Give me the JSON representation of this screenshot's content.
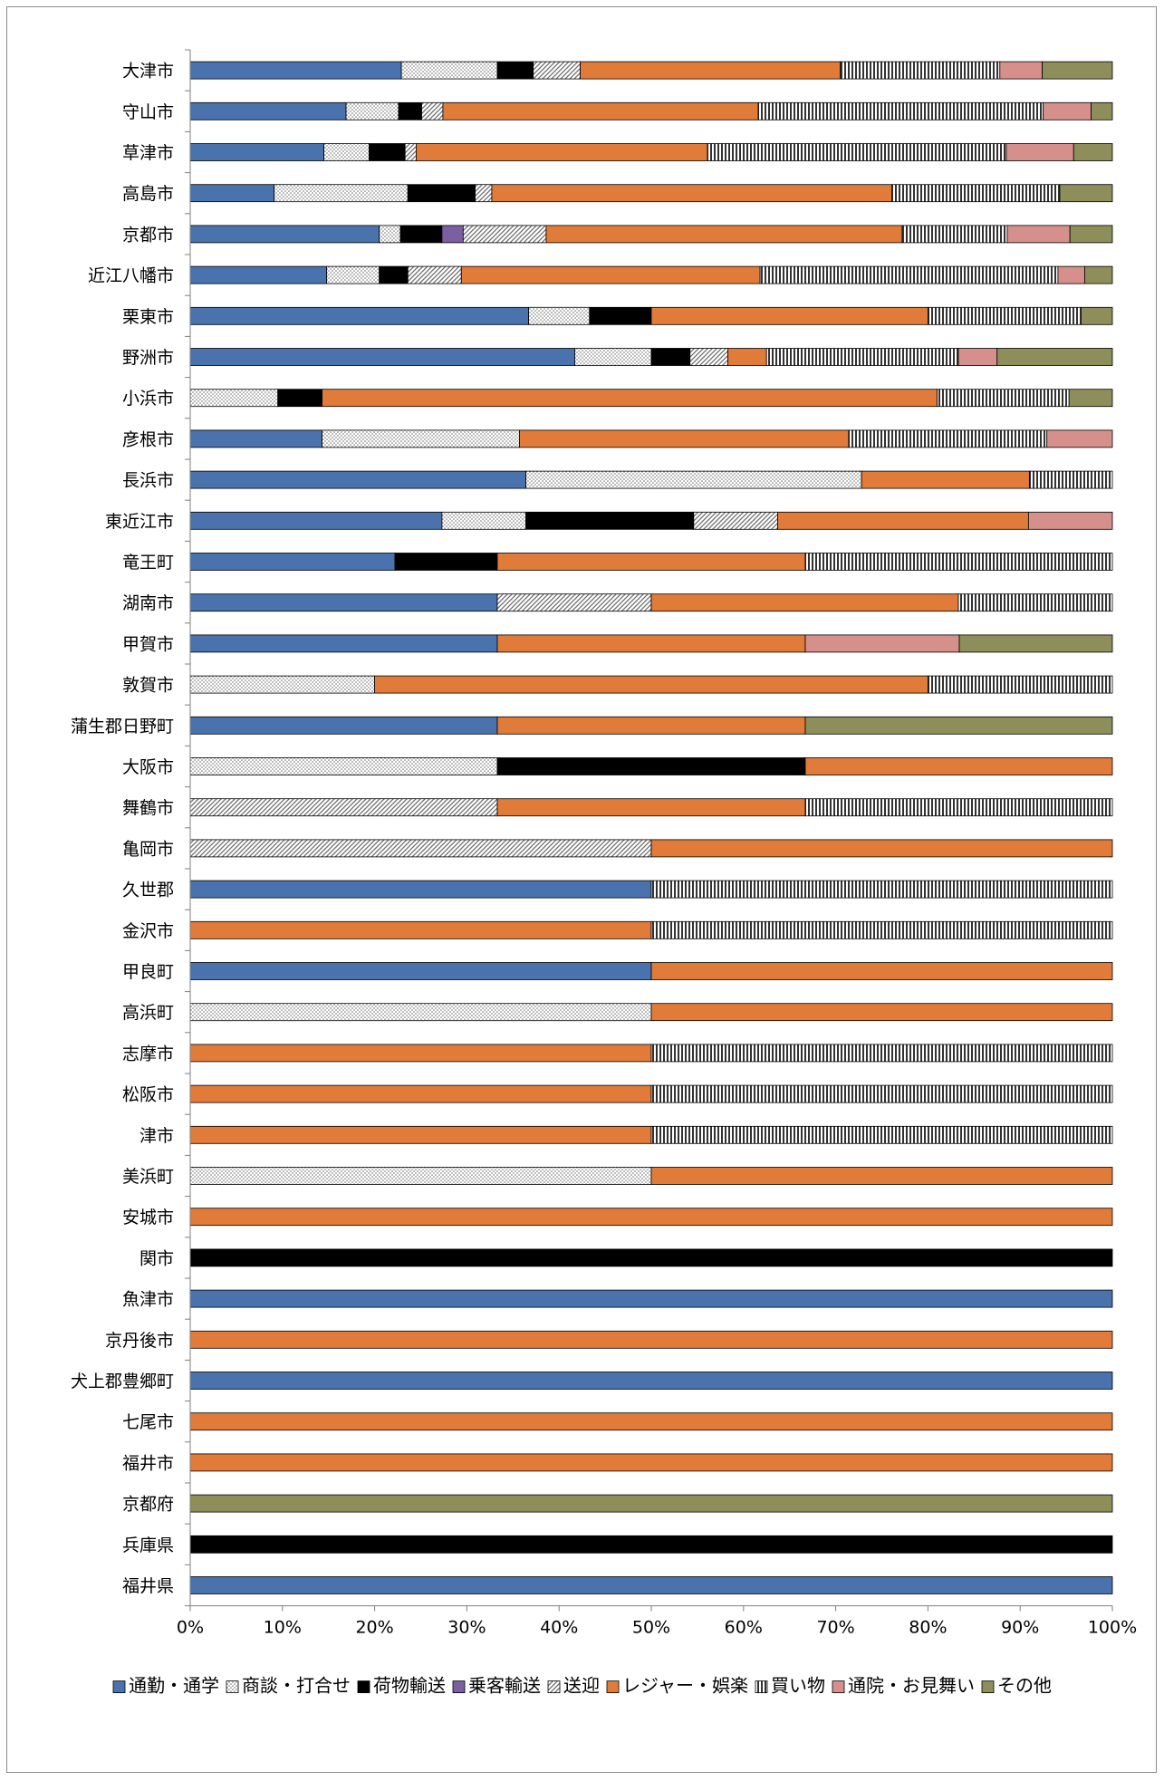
{
  "chart_data": {
    "type": "bar",
    "orientation": "horizontal",
    "stacked": "percent",
    "legend_position": "bottom",
    "grid": false,
    "xlim": [
      0,
      100
    ],
    "x_ticks": [
      "0%",
      "10%",
      "20%",
      "30%",
      "40%",
      "50%",
      "60%",
      "70%",
      "80%",
      "90%",
      "100%"
    ],
    "categories": [
      "大津市",
      "守山市",
      "草津市",
      "高島市",
      "京都市",
      "近江八幡市",
      "栗東市",
      "野洲市",
      "小浜市",
      "彦根市",
      "長浜市",
      "東近江市",
      "竜王町",
      "湖南市",
      "甲賀市",
      "敦賀市",
      "蒲生郡日野町",
      "大阪市",
      "舞鶴市",
      "亀岡市",
      "久世郡",
      "金沢市",
      "甲良町",
      "高浜町",
      "志摩市",
      "松阪市",
      "津市",
      "美浜町",
      "安城市",
      "関市",
      "魚津市",
      "京丹後市",
      "犬上郡豊郷町",
      "七尾市",
      "福井市",
      "京都府",
      "兵庫県",
      "福井県"
    ],
    "series": [
      {
        "name": "通勤・通学",
        "color": "#4a72ad",
        "pattern": "solid",
        "values": [
          22.9,
          16.9,
          14.5,
          9.1,
          20.5,
          14.8,
          36.7,
          41.7,
          0,
          14.3,
          36.4,
          27.3,
          22.2,
          33.3,
          33.3,
          0,
          33.3,
          0,
          0,
          0,
          50,
          0,
          50,
          0,
          0,
          0,
          0,
          0,
          0,
          0,
          100,
          0,
          100,
          0,
          0,
          0,
          0,
          100
        ]
      },
      {
        "name": "商談・打合せ",
        "color": "#d9d9d9",
        "pattern": "dots",
        "values": [
          10.4,
          5.7,
          4.9,
          14.5,
          2.3,
          5.7,
          6.6,
          8.3,
          9.5,
          21.4,
          36.4,
          9.1,
          0,
          0,
          0,
          20,
          0,
          33.3,
          0,
          0,
          0,
          0,
          0,
          50,
          0,
          0,
          0,
          50,
          0,
          0,
          0,
          0,
          0,
          0,
          0,
          0,
          0,
          0
        ]
      },
      {
        "name": "荷物輸送",
        "color": "#000000",
        "pattern": "solid",
        "values": [
          3.9,
          2.5,
          3.9,
          7.3,
          4.5,
          3.1,
          6.7,
          4.2,
          4.8,
          0,
          0,
          18.2,
          11.1,
          0,
          0,
          0,
          0,
          33.4,
          0,
          0,
          0,
          0,
          0,
          0,
          0,
          0,
          0,
          0,
          0,
          100,
          0,
          0,
          0,
          0,
          0,
          0,
          100,
          0
        ]
      },
      {
        "name": "乗客輸送",
        "color": "#7b5fa0",
        "pattern": "solid",
        "values": [
          0,
          0,
          0,
          0,
          2.3,
          0,
          0,
          0,
          0,
          0,
          0,
          0,
          0,
          0,
          0,
          0,
          0,
          0,
          0,
          0,
          0,
          0,
          0,
          0,
          0,
          0,
          0,
          0,
          0,
          0,
          0,
          0,
          0,
          0,
          0,
          0,
          0,
          0
        ]
      },
      {
        "name": "送迎",
        "color": "#bfbfbf",
        "pattern": "diag",
        "values": [
          5.1,
          2.3,
          1.2,
          1.8,
          9.0,
          5.8,
          0,
          4.1,
          0,
          0,
          0,
          9.1,
          0,
          16.7,
          0,
          0,
          0,
          0,
          33.3,
          50,
          0,
          0,
          0,
          0,
          0,
          0,
          0,
          0,
          0,
          0,
          0,
          0,
          0,
          0,
          0,
          0,
          0,
          0
        ]
      },
      {
        "name": "レジャー・娯楽",
        "color": "#e07b39",
        "pattern": "solid",
        "values": [
          28.2,
          34.2,
          31.6,
          43.4,
          38.6,
          32.4,
          30.0,
          4.2,
          66.7,
          35.7,
          18.2,
          27.2,
          33.4,
          33.3,
          33.4,
          60,
          33.4,
          33.3,
          33.4,
          50,
          0,
          50,
          50,
          50,
          50,
          50,
          50,
          50,
          100,
          0,
          0,
          100,
          0,
          100,
          100,
          0,
          0,
          0
        ]
      },
      {
        "name": "買い物",
        "color": "#d9d9d9",
        "pattern": "vstripe",
        "values": [
          17.3,
          30.9,
          32.4,
          18.2,
          11.4,
          32.3,
          16.6,
          20.8,
          14.3,
          21.5,
          9.0,
          0,
          33.3,
          16.7,
          0,
          20,
          0,
          0,
          33.3,
          0,
          50,
          50,
          0,
          0,
          50,
          50,
          50,
          0,
          0,
          0,
          0,
          0,
          0,
          0,
          0,
          0,
          0,
          0
        ]
      },
      {
        "name": "通院・お見舞い",
        "color": "#d6908c",
        "pattern": "solid",
        "values": [
          4.6,
          5.2,
          7.3,
          0,
          6.8,
          2.9,
          0,
          4.2,
          0,
          7.1,
          0,
          9.1,
          0,
          0,
          16.7,
          0,
          0,
          0,
          0,
          0,
          0,
          0,
          0,
          0,
          0,
          0,
          0,
          0,
          0,
          0,
          0,
          0,
          0,
          0,
          0,
          0,
          0,
          0
        ]
      },
      {
        "name": "その他",
        "color": "#8e8e5a",
        "pattern": "solid",
        "values": [
          7.6,
          2.3,
          4.2,
          5.7,
          4.6,
          3.0,
          3.4,
          12.5,
          4.7,
          0,
          0,
          0,
          0,
          0,
          16.6,
          0,
          33.3,
          0,
          0,
          0,
          0,
          0,
          0,
          0,
          0,
          0,
          0,
          0,
          0,
          0,
          0,
          0,
          0,
          0,
          0,
          100,
          0,
          0
        ]
      }
    ]
  }
}
